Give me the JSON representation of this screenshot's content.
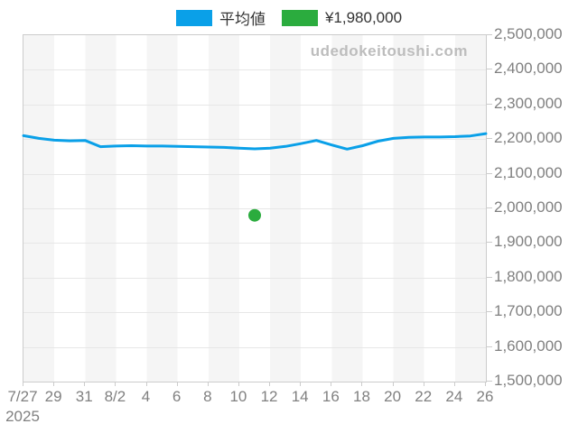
{
  "legend": {
    "items": [
      {
        "label": "平均値",
        "color": "#0AA0E8"
      },
      {
        "label": "¥1,980,000",
        "color": "#2BAC3E"
      }
    ]
  },
  "watermark": "udedokeitoushi.com",
  "year_label": "2025",
  "colors": {
    "band_gray": "#F5F5F5",
    "band_white": "#FFFFFF",
    "gridline": "#E7E7E7",
    "axis_label": "#808080",
    "tick": "#CCCCCC",
    "plot_border": "#CCCCCC",
    "watermark": "#BDBDBD",
    "legend_text": "#333333"
  },
  "chart_data": {
    "type": "line",
    "title": "",
    "xlabel": "",
    "ylabel": "",
    "grid": true,
    "legend_position": "top-center",
    "ylim": [
      1500000,
      2500000
    ],
    "ytick_step": 100000,
    "x_tick_labels": [
      {
        "day": 0,
        "label": "7/27"
      },
      {
        "day": 2,
        "label": "29"
      },
      {
        "day": 4,
        "label": "31"
      },
      {
        "day": 6,
        "label": "8/2"
      },
      {
        "day": 8,
        "label": "4"
      },
      {
        "day": 10,
        "label": "6"
      },
      {
        "day": 12,
        "label": "8"
      },
      {
        "day": 14,
        "label": "10"
      },
      {
        "day": 16,
        "label": "12"
      },
      {
        "day": 18,
        "label": "14"
      },
      {
        "day": 20,
        "label": "16"
      },
      {
        "day": 22,
        "label": "18"
      },
      {
        "day": 24,
        "label": "20"
      },
      {
        "day": 26,
        "label": "22"
      },
      {
        "day": 28,
        "label": "24"
      },
      {
        "day": 30,
        "label": "26"
      }
    ],
    "series": [
      {
        "name": "平均値",
        "color": "#0AA0E8",
        "dates": [
          "7/27",
          "7/28",
          "7/29",
          "7/30",
          "7/31",
          "8/1",
          "8/2",
          "8/3",
          "8/4",
          "8/5",
          "8/6",
          "8/7",
          "8/8",
          "8/9",
          "8/10",
          "8/11",
          "8/12",
          "8/13",
          "8/14",
          "8/15",
          "8/16",
          "8/17",
          "8/18",
          "8/19",
          "8/20",
          "8/21",
          "8/22",
          "8/23",
          "8/24",
          "8/25",
          "8/26"
        ],
        "values": [
          2210000,
          2202000,
          2197000,
          2195000,
          2196000,
          2178000,
          2180000,
          2181000,
          2180000,
          2180000,
          2179000,
          2178000,
          2177000,
          2176000,
          2174000,
          2172000,
          2174000,
          2179000,
          2187000,
          2196000,
          2183000,
          2171000,
          2181000,
          2194000,
          2202000,
          2205000,
          2206000,
          2206000,
          2207000,
          2209000,
          2216000
        ]
      }
    ],
    "marker_point": {
      "label": "¥1,980,000",
      "date": "8/11",
      "day_index": 15,
      "value": 1980000,
      "color": "#2BAC3E"
    }
  }
}
